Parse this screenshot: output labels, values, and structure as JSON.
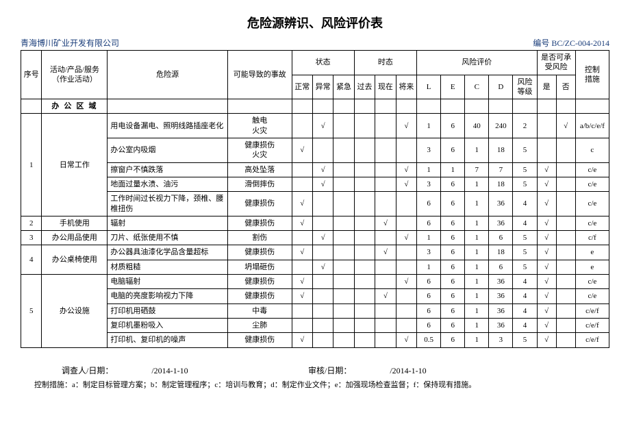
{
  "title": "危险源辨识、风险评价表",
  "company": "青海博川矿业开发有限公司",
  "docno": "编号 BC/ZC-004-2014",
  "head": {
    "seq": "序号",
    "activity": "活动/产品/服务\n（作业活动）",
    "hazard": "危险源",
    "accident": "可能导致的事故",
    "state": "状态",
    "tense": "时态",
    "risk": "风险评价",
    "accept": "是否可承\n受风险",
    "control": "控制\n措施",
    "normal": "正常",
    "abnormal": "异常",
    "emerg": "紧急",
    "past": "过去",
    "now": "现在",
    "future": "将来",
    "L": "L",
    "E": "E",
    "C": "C",
    "D": "D",
    "level": "风险\n等级",
    "yes": "是",
    "no": "否"
  },
  "section": "办 公 区 域",
  "rows": [
    {
      "seq": "1",
      "seqspan": 5,
      "act": "日常工作",
      "actspan": 5,
      "haz": "用电设备漏电、照明线路插座老化",
      "acc": "触电\n火灾",
      "s1": "",
      "s2": "√",
      "s3": "",
      "t1": "",
      "t2": "",
      "t3": "√",
      "L": "1",
      "E": "6",
      "C": "40",
      "D": "240",
      "lvl": "2",
      "y": "",
      "n": "√",
      "ctrl": "a/b/c/e/f"
    },
    {
      "haz": "办公室内吸烟",
      "acc": "健康损伤\n火灾",
      "s1": "√",
      "s2": "",
      "s3": "",
      "t1": "",
      "t2": "",
      "t3": "",
      "L": "3",
      "E": "6",
      "C": "1",
      "D": "18",
      "lvl": "5",
      "y": "",
      "n": "",
      "ctrl": "c"
    },
    {
      "haz": "擦窗户不慎跌落",
      "acc": "高处坠落",
      "s1": "",
      "s2": "√",
      "s3": "",
      "t1": "",
      "t2": "",
      "t3": "√",
      "L": "1",
      "E": "1",
      "C": "7",
      "D": "7",
      "lvl": "5",
      "y": "√",
      "n": "",
      "ctrl": "c/e"
    },
    {
      "haz": "地面过量水渍、油污",
      "acc": "滑倒摔伤",
      "s1": "",
      "s2": "√",
      "s3": "",
      "t1": "",
      "t2": "",
      "t3": "√",
      "L": "3",
      "E": "6",
      "C": "1",
      "D": "18",
      "lvl": "5",
      "y": "√",
      "n": "",
      "ctrl": "c/e"
    },
    {
      "haz": "工作时间过长视力下降，颈椎、腰椎扭伤",
      "acc": "健康损伤",
      "s1": "√",
      "s2": "",
      "s3": "",
      "t1": "",
      "t2": "",
      "t3": "",
      "L": "6",
      "E": "6",
      "C": "1",
      "D": "36",
      "lvl": "4",
      "y": "√",
      "n": "",
      "ctrl": "c/e"
    },
    {
      "seq": "2",
      "seqspan": 1,
      "act": "手机使用",
      "actspan": 1,
      "haz": "辐射",
      "acc": "健康损伤",
      "s1": "√",
      "s2": "",
      "s3": "",
      "t1": "",
      "t2": "√",
      "t3": "",
      "L": "6",
      "E": "6",
      "C": "1",
      "D": "36",
      "lvl": "4",
      "y": "√",
      "n": "",
      "ctrl": "c/e"
    },
    {
      "seq": "3",
      "seqspan": 1,
      "act": "办公用品使用",
      "actspan": 1,
      "haz": "刀片、纸张使用不慎",
      "acc": "割伤",
      "s1": "",
      "s2": "√",
      "s3": "",
      "t1": "",
      "t2": "",
      "t3": "√",
      "L": "1",
      "E": "6",
      "C": "1",
      "D": "6",
      "lvl": "5",
      "y": "√",
      "n": "",
      "ctrl": "c/f"
    },
    {
      "seq": "4",
      "seqspan": 2,
      "act": "办公桌椅使用",
      "actspan": 2,
      "haz": "办公器具油漆化学品含量超标",
      "acc": "健康损伤",
      "s1": "√",
      "s2": "",
      "s3": "",
      "t1": "",
      "t2": "√",
      "t3": "",
      "L": "3",
      "E": "6",
      "C": "1",
      "D": "18",
      "lvl": "5",
      "y": "√",
      "n": "",
      "ctrl": "e"
    },
    {
      "haz": "材质粗糙",
      "acc": "坍塌砸伤",
      "s1": "",
      "s2": "√",
      "s3": "",
      "t1": "",
      "t2": "",
      "t3": "",
      "L": "1",
      "E": "6",
      "C": "1",
      "D": "6",
      "lvl": "5",
      "y": "√",
      "n": "",
      "ctrl": "e"
    },
    {
      "seq": "5",
      "seqspan": 5,
      "act": "办公设施",
      "actspan": 5,
      "haz": "电脑辐射",
      "acc": "健康损伤",
      "s1": "√",
      "s2": "",
      "s3": "",
      "t1": "",
      "t2": "",
      "t3": "√",
      "L": "6",
      "E": "6",
      "C": "1",
      "D": "36",
      "lvl": "4",
      "y": "√",
      "n": "",
      "ctrl": "c/e"
    },
    {
      "haz": "电脑的亮度影响视力下降",
      "acc": "健康损伤",
      "s1": "√",
      "s2": "",
      "s3": "",
      "t1": "",
      "t2": "√",
      "t3": "",
      "L": "6",
      "E": "6",
      "C": "1",
      "D": "36",
      "lvl": "4",
      "y": "√",
      "n": "",
      "ctrl": "c/e"
    },
    {
      "haz": "打印机用硒鼓",
      "acc": "中毒",
      "s1": "",
      "s2": "",
      "s3": "",
      "t1": "",
      "t2": "",
      "t3": "",
      "L": "6",
      "E": "6",
      "C": "1",
      "D": "36",
      "lvl": "4",
      "y": "√",
      "n": "",
      "ctrl": "c/e/f"
    },
    {
      "haz": "复印机墨粉吸入",
      "acc": "尘肺",
      "s1": "",
      "s2": "",
      "s3": "",
      "t1": "",
      "t2": "",
      "t3": "",
      "L": "6",
      "E": "6",
      "C": "1",
      "D": "36",
      "lvl": "4",
      "y": "√",
      "n": "",
      "ctrl": "c/e/f"
    },
    {
      "haz": "打印机、复印机的噪声",
      "acc": "健康损伤",
      "s1": "√",
      "s2": "",
      "s3": "",
      "t1": "",
      "t2": "",
      "t3": "√",
      "L": "0.5",
      "E": "6",
      "C": "1",
      "D": "3",
      "lvl": "5",
      "y": "√",
      "n": "",
      "ctrl": "c/e/f"
    }
  ],
  "footer": {
    "inv_label": "调查人/日期：",
    "inv_date": "/2014-1-10",
    "rev_label": "审核/日期：",
    "rev_date": "/2014-1-10",
    "note": "控制措施：a：制定目标管理方案；b：制定管理程序；c：培训与教育；d：制定作业文件；e：加强现场检查监督；f：保持现有措施。"
  }
}
